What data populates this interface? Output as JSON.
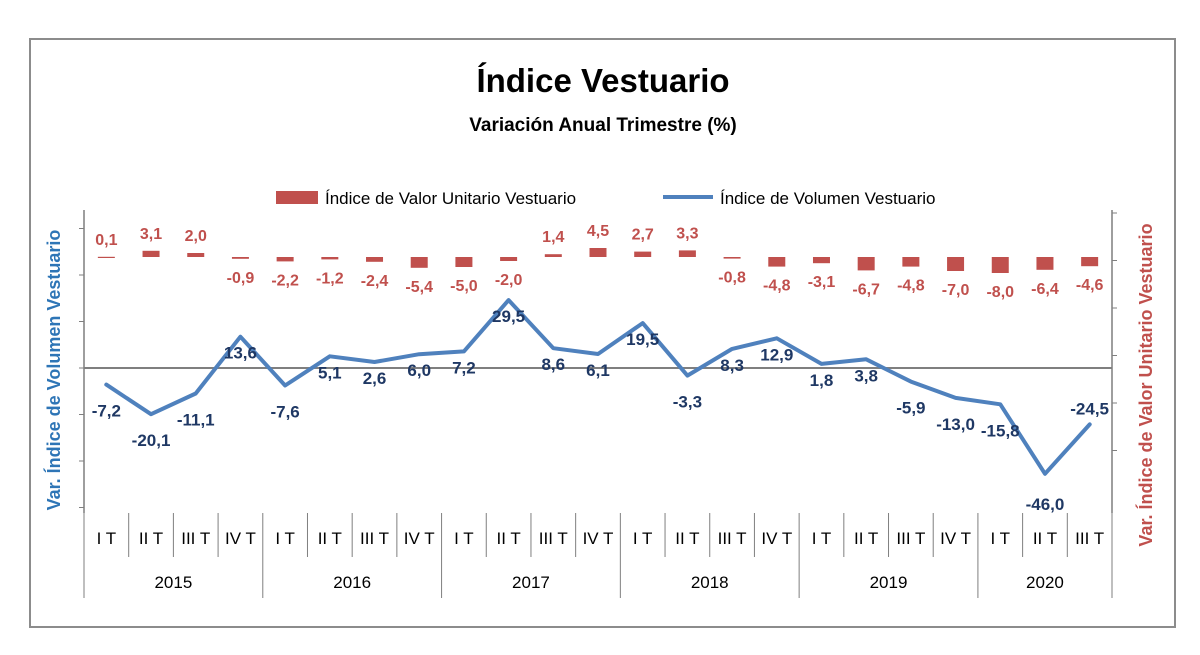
{
  "chart_data": {
    "type": "bar+line",
    "title": "Índice Vestuario",
    "subtitle": "Variación Anual Trimestre  (%)",
    "y_left_label": "Var. Índice de Volumen Vestuario",
    "y_right_label": "Var. Índice de Valor Unitario Vestuario",
    "legend_position": "top",
    "grid": false,
    "years": [
      "2015",
      "2016",
      "2017",
      "2018",
      "2019",
      "2020"
    ],
    "categories": [
      "I T",
      "II T",
      "III T",
      "IV T",
      "I T",
      "II T",
      "III T",
      "IV T",
      "I T",
      "II T",
      "III T",
      "IV T",
      "I T",
      "II T",
      "III T",
      "IV T",
      "I T",
      "II T",
      "III T",
      "IV T",
      "I T",
      "II T",
      "III T"
    ],
    "series": [
      {
        "name": "Índice de Valor Unitario Vestuario",
        "type": "bar",
        "axis": "right",
        "color": "#C0504D",
        "values": [
          0.1,
          3.1,
          2.0,
          -0.9,
          -2.2,
          -1.2,
          -2.4,
          -5.4,
          -5.0,
          -2.0,
          1.4,
          4.5,
          2.7,
          3.3,
          -0.8,
          -4.8,
          -3.1,
          -6.7,
          -4.8,
          -7.0,
          -8.0,
          -6.4,
          -4.6
        ],
        "labels": [
          "0,1",
          "3,1",
          "2,0",
          "-0,9",
          "-2,2",
          "-1,2",
          "-2,4",
          "-5,4",
          "-5,0",
          "-2,0",
          "1,4",
          "4,5",
          "2,7",
          "3,3",
          "-0,8",
          "-4,8",
          "-3,1",
          "-6,7",
          "-4,8",
          "-7,0",
          "-8,0",
          "-6,4",
          "-4,6"
        ]
      },
      {
        "name": "Índice de Volumen Vestuario",
        "type": "line",
        "axis": "left",
        "color": "#4F81BD",
        "values": [
          -7.2,
          -20.1,
          -11.1,
          13.6,
          -7.6,
          5.1,
          2.6,
          6.0,
          7.2,
          29.5,
          8.6,
          6.1,
          19.5,
          -3.3,
          8.3,
          12.9,
          1.8,
          3.8,
          -5.9,
          -13.0,
          -15.8,
          -46.0,
          -24.5
        ],
        "labels": [
          "-7,2",
          "-20,1",
          "-11,1",
          "13,6",
          "-7,6",
          "5,1",
          "2,6",
          "6,0",
          "7,2",
          "29,5",
          "8,6",
          "6,1",
          "19,5",
          "-3,3",
          "8,3",
          "12,9",
          "1,8",
          "3,8",
          "-5,9",
          "-13,0",
          "-15,8",
          "-46,0",
          "-24,5"
        ]
      }
    ],
    "colors": {
      "left_axis_title": "#2E75B6",
      "right_axis_title": "#C0504D",
      "line_label": "#1F3864",
      "bar_label": "#C0504D",
      "axis": "#7f7f7f"
    }
  }
}
